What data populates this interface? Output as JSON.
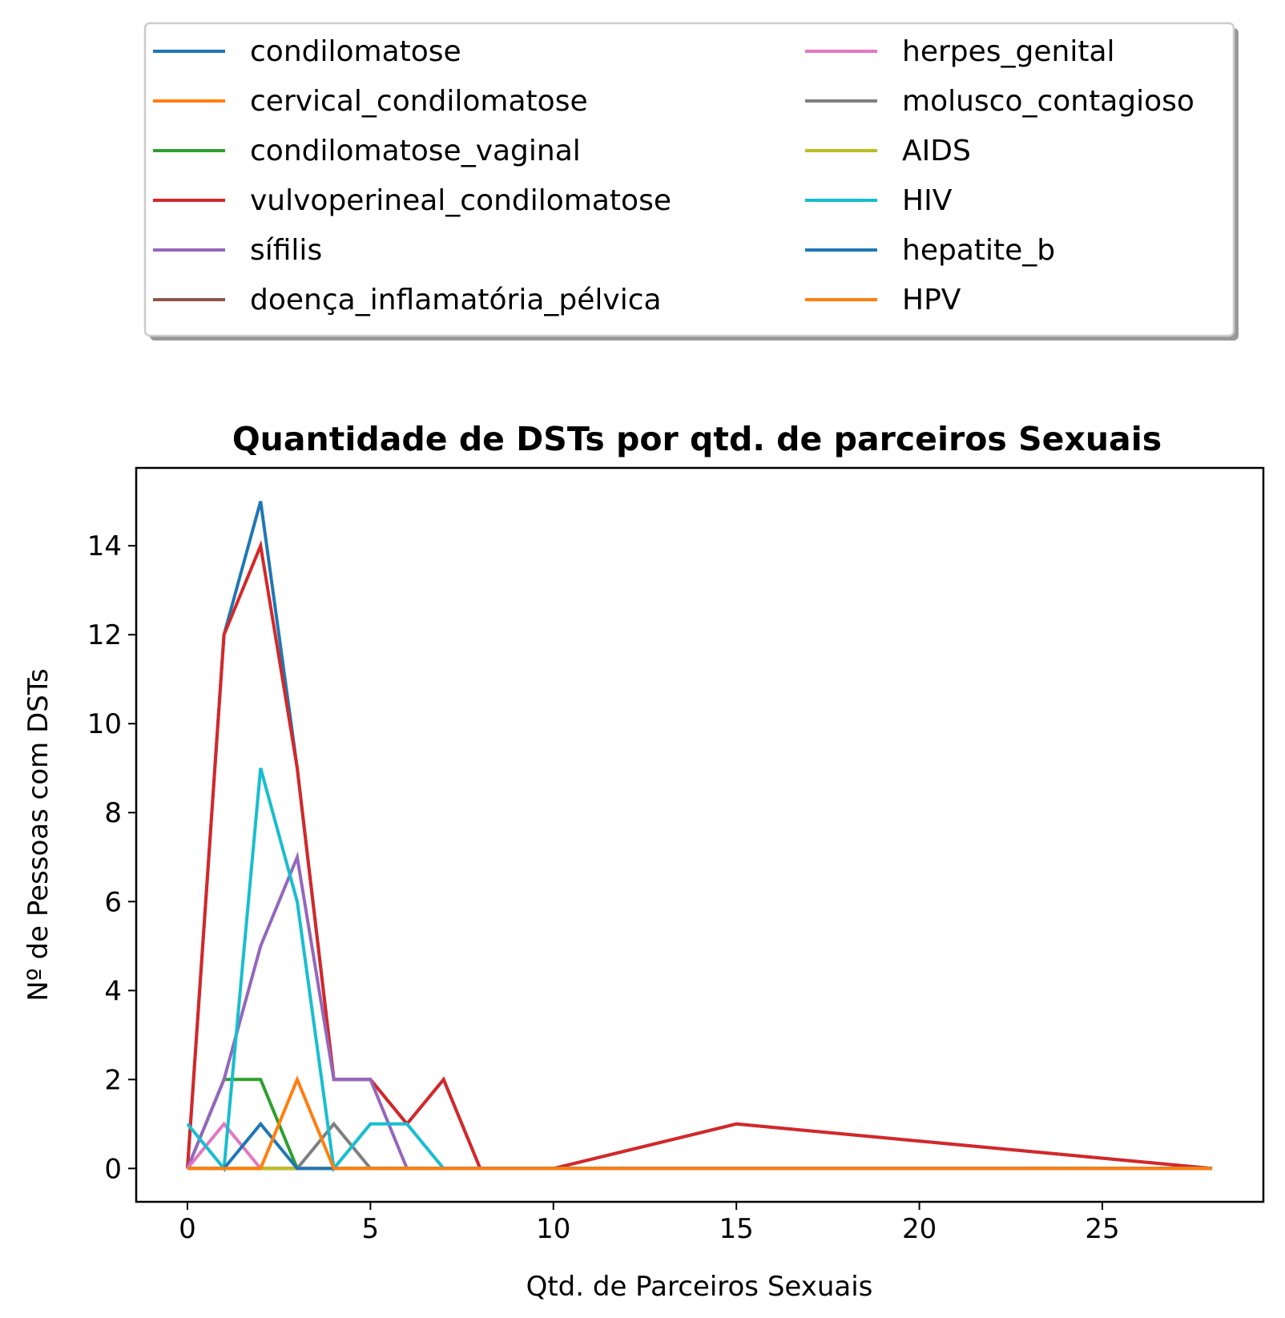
{
  "chart_data": {
    "type": "line",
    "title": "Quantidade de DSTs por qtd. de parceiros Sexuais",
    "xlabel": "Qtd. de Parceiros Sexuais",
    "ylabel": "Nº de Pessoas com DSTs",
    "xlim": [
      -1.4,
      29.4
    ],
    "ylim": [
      -0.75,
      15.75
    ],
    "xticks": [
      0,
      5,
      10,
      15,
      20,
      25
    ],
    "yticks": [
      0,
      2,
      4,
      6,
      8,
      10,
      12,
      14
    ],
    "grid": false,
    "legend_position": "top, above plot (2 columns)",
    "x": [
      0,
      1,
      2,
      3,
      4,
      5,
      6,
      7,
      8,
      9,
      10,
      15,
      28
    ],
    "series": [
      {
        "name": "condilomatose",
        "color": "#1f77b4",
        "values": [
          0,
          12,
          15,
          9,
          2,
          2,
          1,
          2,
          0,
          0,
          0,
          1,
          0
        ]
      },
      {
        "name": "cervical_condilomatose",
        "color": "#ff7f0e",
        "values": [
          0,
          0,
          0,
          0,
          0,
          0,
          0,
          0,
          0,
          0,
          0,
          0,
          0
        ]
      },
      {
        "name": "condilomatose_vaginal",
        "color": "#2ca02c",
        "values": [
          0,
          2,
          2,
          0,
          0,
          0,
          0,
          0,
          0,
          0,
          0,
          0,
          0
        ]
      },
      {
        "name": "vulvoperineal_condilomatose",
        "color": "#d62728",
        "values": [
          0,
          12,
          14,
          9,
          2,
          2,
          1,
          2,
          0,
          0,
          0,
          1,
          0
        ]
      },
      {
        "name": "sífilis",
        "color": "#9467bd",
        "values": [
          0,
          2,
          5,
          7,
          2,
          2,
          0,
          0,
          0,
          0,
          0,
          0,
          0
        ]
      },
      {
        "name": "doença_inflamatória_pélvica",
        "color": "#8c564b",
        "values": [
          0,
          0,
          0,
          0,
          0,
          0,
          0,
          0,
          0,
          0,
          0,
          0,
          0
        ]
      },
      {
        "name": "herpes_genital",
        "color": "#e377c2",
        "values": [
          0,
          1,
          0,
          0,
          0,
          0,
          0,
          0,
          0,
          0,
          0,
          0,
          0
        ]
      },
      {
        "name": "molusco_contagioso",
        "color": "#7f7f7f",
        "values": [
          0,
          0,
          0,
          0,
          1,
          0,
          0,
          0,
          0,
          0,
          0,
          0,
          0
        ]
      },
      {
        "name": "AIDS",
        "color": "#bcbd22",
        "values": [
          0,
          0,
          0,
          0,
          0,
          0,
          0,
          0,
          0,
          0,
          0,
          0,
          0
        ]
      },
      {
        "name": "HIV",
        "color": "#17becf",
        "values": [
          1,
          0,
          9,
          6,
          0,
          1,
          1,
          0,
          0,
          0,
          0,
          0,
          0
        ]
      },
      {
        "name": "hepatite_b",
        "color": "#1f77b4",
        "values": [
          0,
          0,
          1,
          0,
          0,
          0,
          0,
          0,
          0,
          0,
          0,
          0,
          0
        ]
      },
      {
        "name": "HPV",
        "color": "#ff7f0e",
        "values": [
          0,
          0,
          0,
          2,
          0,
          0,
          0,
          0,
          0,
          0,
          0,
          0,
          0
        ]
      }
    ]
  }
}
